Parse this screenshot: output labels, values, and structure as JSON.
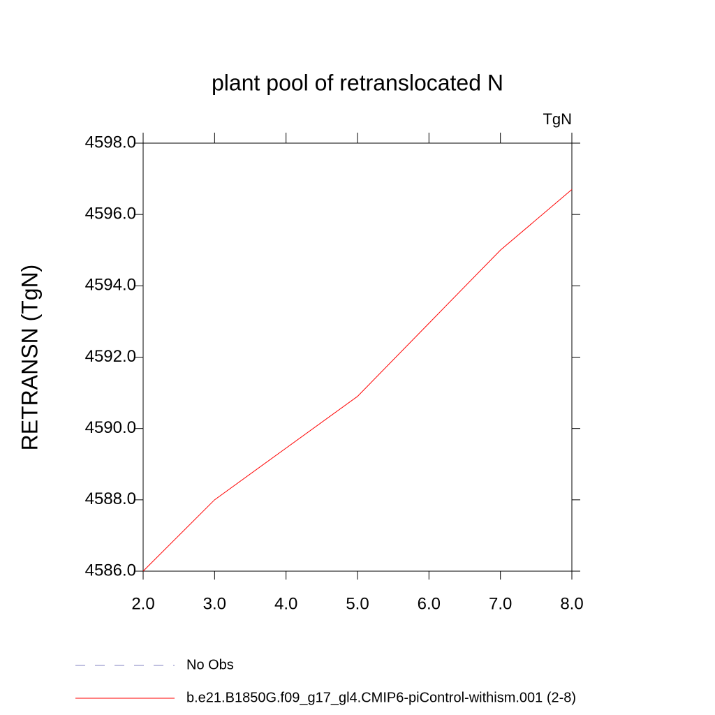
{
  "chart_data": {
    "type": "line",
    "title": "plant pool of retranslocated N",
    "units": "TgN",
    "y_label": "RETRANSN  (TgN)",
    "x": [
      2,
      3,
      4,
      5,
      6,
      7,
      8
    ],
    "series": [
      {
        "name": "No Obs",
        "color": "#8080c0",
        "dashed": true,
        "values": [
          null,
          null,
          null,
          null,
          null,
          null,
          null
        ]
      },
      {
        "name": "b.e21.B1850G.f09_g17_gl4.CMIP6-piControl-withism.001 (2-8)",
        "color": "#ff0000",
        "dashed": false,
        "values": [
          4586.0,
          4588.0,
          4589.45,
          4590.9,
          4592.95,
          4595.0,
          4596.7
        ]
      }
    ],
    "xlim": [
      2,
      8
    ],
    "xticks": [
      {
        "value": 2,
        "label": "2.0"
      },
      {
        "value": 3,
        "label": "3.0"
      },
      {
        "value": 4,
        "label": "4.0"
      },
      {
        "value": 5,
        "label": "5.0"
      },
      {
        "value": 6,
        "label": "6.0"
      },
      {
        "value": 7,
        "label": "7.0"
      },
      {
        "value": 8,
        "label": "8.0"
      }
    ],
    "ylim": [
      4586,
      4598
    ],
    "yticks": [
      {
        "value": 4586,
        "label": "4586.0"
      },
      {
        "value": 4588,
        "label": "4588.0"
      },
      {
        "value": 4590,
        "label": "4590.0"
      },
      {
        "value": 4592,
        "label": "4592.0"
      },
      {
        "value": 4594,
        "label": "4594.0"
      },
      {
        "value": 4596,
        "label": "4596.0"
      },
      {
        "value": 4598,
        "label": "4598.0"
      }
    ]
  }
}
